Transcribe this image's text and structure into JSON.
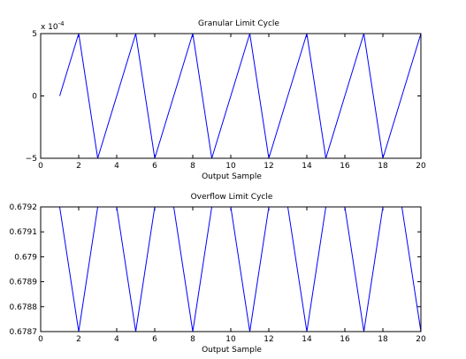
{
  "chart_data": [
    {
      "type": "line",
      "title": "Granular Limit Cycle",
      "xlabel": "Output Sample",
      "ylabel": "",
      "multiplier": "x 10",
      "multiplier_exp": "-4",
      "xlim": [
        0,
        20
      ],
      "ylim": [
        -5,
        5
      ],
      "xticks": [
        0,
        2,
        4,
        6,
        8,
        10,
        12,
        14,
        16,
        18,
        20
      ],
      "yticks": [
        -5,
        0,
        5
      ],
      "yticklabels": [
        "−5",
        "0",
        "5"
      ],
      "grid": false,
      "x": [
        1,
        2,
        3,
        4,
        5,
        6,
        7,
        8,
        9,
        10,
        11,
        12,
        13,
        14,
        15,
        16,
        17,
        18,
        19,
        20
      ],
      "series": [
        {
          "values": [
            0,
            5,
            -5,
            0,
            5,
            -5,
            0,
            5,
            -5,
            0,
            5,
            -5,
            0,
            5,
            -5,
            0,
            5,
            -5,
            0,
            5
          ],
          "color": "#0000ff"
        }
      ]
    },
    {
      "type": "line",
      "title": "Overflow Limit Cycle",
      "xlabel": "Output Sample",
      "ylabel": "",
      "xlim": [
        0,
        20
      ],
      "ylim": [
        0.6787,
        0.6792
      ],
      "xticks": [
        0,
        2,
        4,
        6,
        8,
        10,
        12,
        14,
        16,
        18,
        20
      ],
      "yticks": [
        0.6787,
        0.6788,
        0.6789,
        0.679,
        0.6791,
        0.6792
      ],
      "yticklabels": [
        "0.6787",
        "0.6788",
        "0.6789",
        "0.679",
        "0.6791",
        "0.6792"
      ],
      "grid": false,
      "x": [
        1,
        2,
        3,
        4,
        5,
        6,
        7,
        8,
        9,
        10,
        11,
        12,
        13,
        14,
        15,
        16,
        17,
        18,
        19,
        20
      ],
      "series": [
        {
          "values": [
            0.6792,
            0.6787,
            0.6792,
            0.6792,
            0.6787,
            0.6792,
            0.6792,
            0.6787,
            0.6792,
            0.6792,
            0.6787,
            0.6792,
            0.6792,
            0.6787,
            0.6792,
            0.6792,
            0.6787,
            0.6792,
            0.6792,
            0.6787
          ],
          "color": "#0000ff"
        }
      ]
    }
  ]
}
